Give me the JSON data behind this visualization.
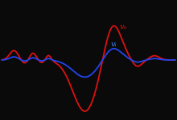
{
  "background_color": "#0a0a0a",
  "vi_color": "#2244ee",
  "vo_color": "#dd1111",
  "vi_label": "vᵢ",
  "vo_label": "vₒ",
  "label_color_vi": "#4488ff",
  "label_color_vo": "#dd1111",
  "gain": 3.0,
  "figsize": [
    2.2,
    1.5
  ],
  "dpi": 100
}
